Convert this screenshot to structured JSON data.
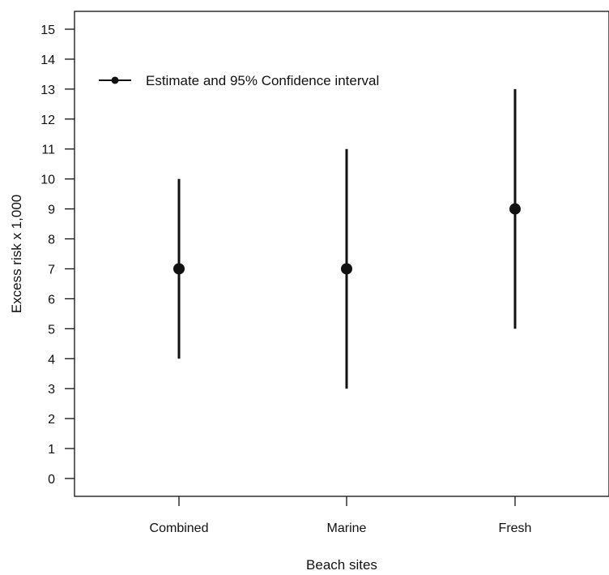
{
  "chart_data": {
    "type": "scatter",
    "subtype": "point-estimate-with-confidence-interval",
    "categories": [
      "Combined",
      "Marine",
      "Fresh"
    ],
    "series": [
      {
        "name": "Estimate and 95% Confidence interval",
        "estimate": [
          7,
          7,
          9
        ],
        "lower": [
          4,
          3,
          5
        ],
        "upper": [
          10,
          11,
          13
        ]
      }
    ],
    "xlabel": "Beach sites",
    "ylabel": "Excess risk x 1,000",
    "ylim": [
      0,
      15
    ],
    "yticks": [
      0,
      1,
      2,
      3,
      4,
      5,
      6,
      7,
      8,
      9,
      10,
      11,
      12,
      13,
      14,
      15
    ],
    "grid": false,
    "legend_position": "top-left",
    "colors": {
      "marks": "#111111",
      "axis": "#111111"
    }
  }
}
